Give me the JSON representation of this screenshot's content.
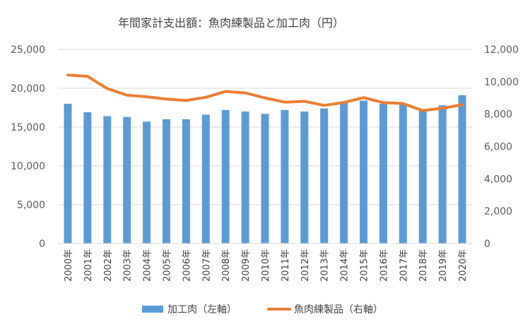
{
  "chart_data": {
    "type": "bar+line",
    "title": "年間家計支出額：魚肉練製品と加工肉（円）",
    "categories": [
      "2000年",
      "2001年",
      "2002年",
      "2003年",
      "2004年",
      "2005年",
      "2006年",
      "2007年",
      "2008年",
      "2009年",
      "2010年",
      "2011年",
      "2012年",
      "2013年",
      "2014年",
      "2015年",
      "2016年",
      "2017年",
      "2018年",
      "2019年",
      "2020年"
    ],
    "series": [
      {
        "name": "加工肉（左軸）",
        "type": "bar",
        "axis": "left",
        "color": "#5b9bd5",
        "values": [
          18000,
          16900,
          16400,
          16300,
          15700,
          16000,
          16000,
          16600,
          17200,
          17000,
          16700,
          17200,
          17000,
          17400,
          18200,
          18400,
          18000,
          18000,
          17200,
          17800,
          19100
        ]
      },
      {
        "name": "魚肉練製品（右軸）",
        "type": "line",
        "axis": "right",
        "color": "#ed7d31",
        "values": [
          10420,
          10330,
          9580,
          9170,
          9070,
          8930,
          8840,
          9040,
          9400,
          9310,
          9000,
          8740,
          8790,
          8540,
          8720,
          9020,
          8710,
          8650,
          8220,
          8360,
          8580
        ]
      }
    ],
    "y_left": {
      "range": [
        0,
        25000
      ],
      "ticks": [
        "0",
        "5,000",
        "10,000",
        "15,000",
        "20,000",
        "25,000"
      ]
    },
    "y_right": {
      "range": [
        0,
        12000
      ],
      "ticks": [
        "0",
        "2,000",
        "4,000",
        "6,000",
        "8,000",
        "10,000",
        "12,000"
      ]
    },
    "grid": true,
    "legend_position": "bottom"
  }
}
